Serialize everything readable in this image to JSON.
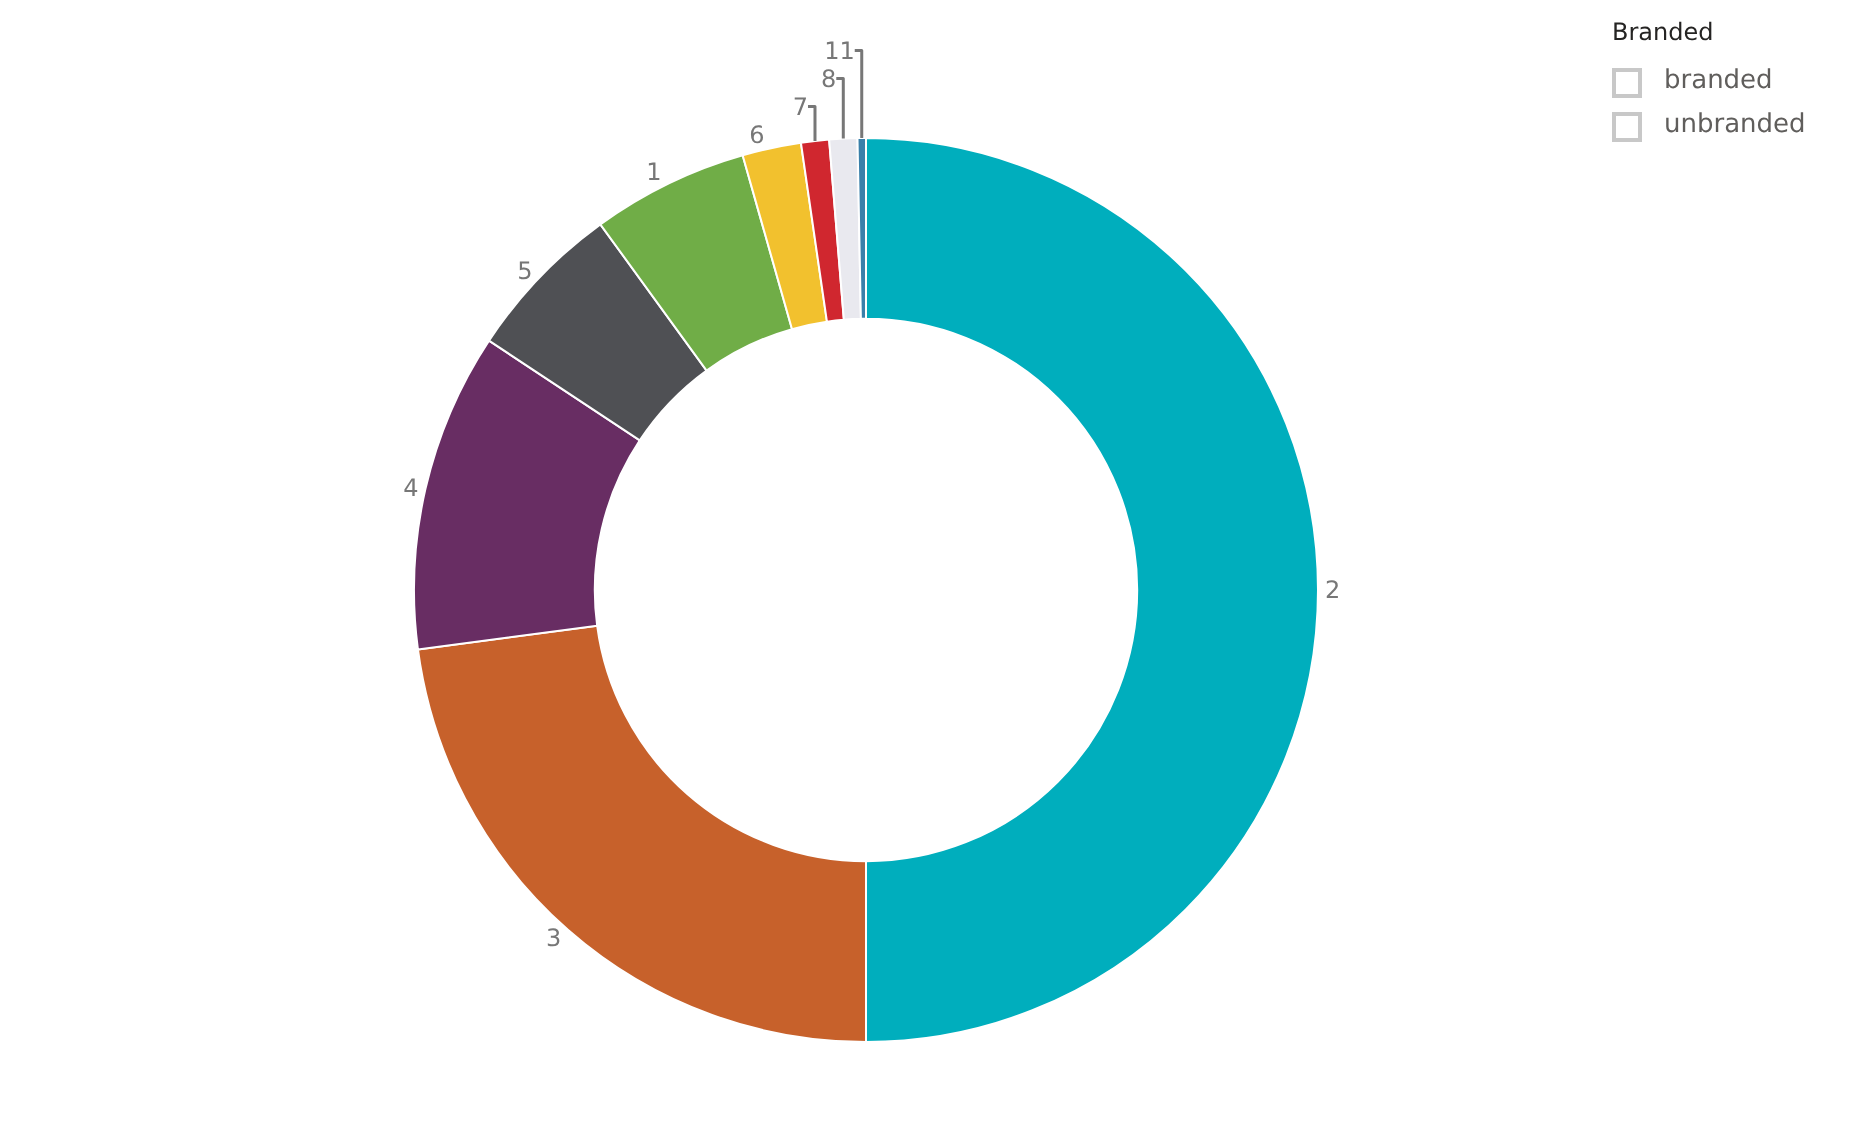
{
  "chart_data": [
    {
      "type": "donut",
      "categories": [
        "2",
        "3",
        "4",
        "5",
        "1",
        "6",
        "7",
        "8",
        "11"
      ],
      "values": [
        50,
        22.9,
        11.4,
        5.7,
        5.6,
        2.1,
        1.0,
        1.0,
        0.3
      ],
      "colors": [
        "#00aebd",
        "#c7612b",
        "#682d63",
        "#4f5054",
        "#70ad47",
        "#f2c12e",
        "#d0272f",
        "#e9e9ef",
        "#3a80aa"
      ]
    },
    {
      "type": "other",
      "title": "Branded",
      "annotations": [
        "branded",
        "unbranded"
      ]
    }
  ]
}
